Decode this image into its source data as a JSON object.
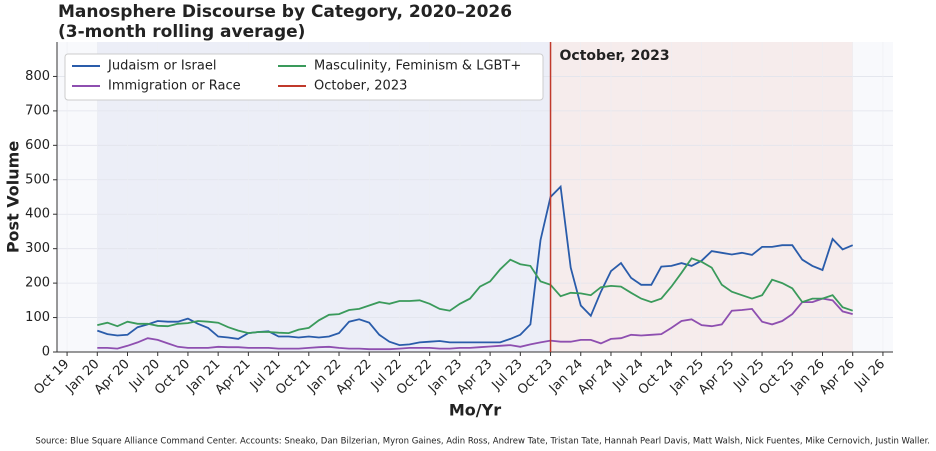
{
  "chart_data": {
    "type": "line",
    "title": "Manosphere Discourse by Category, 2020–2026",
    "subtitle": "(3-month rolling average)",
    "x_label": "Mo/Yr",
    "y_label": "Post Volume",
    "source": "Source: Blue Square Alliance Command Center. Accounts: Sneako, Dan Bilzerian, Myron Gaines, Adin Ross, Andrew Tate, Tristan Tate, Hannah Pearl Davis, Matt Walsh, Nick Fuentes, Mike Cernovich, Justin Waller.",
    "x": [
      "2020-01",
      "2020-02",
      "2020-03",
      "2020-04",
      "2020-05",
      "2020-06",
      "2020-07",
      "2020-08",
      "2020-09",
      "2020-10",
      "2020-11",
      "2020-12",
      "2021-01",
      "2021-02",
      "2021-03",
      "2021-04",
      "2021-05",
      "2021-06",
      "2021-07",
      "2021-08",
      "2021-09",
      "2021-10",
      "2021-11",
      "2021-12",
      "2022-01",
      "2022-02",
      "2022-03",
      "2022-04",
      "2022-05",
      "2022-06",
      "2022-07",
      "2022-08",
      "2022-09",
      "2022-10",
      "2022-11",
      "2022-12",
      "2023-01",
      "2023-02",
      "2023-03",
      "2023-04",
      "2023-05",
      "2023-06",
      "2023-07",
      "2023-08",
      "2023-09",
      "2023-10",
      "2023-11",
      "2023-12",
      "2024-01",
      "2024-02",
      "2024-03",
      "2024-04",
      "2024-05",
      "2024-06",
      "2024-07",
      "2024-08",
      "2024-09",
      "2024-10",
      "2024-11",
      "2024-12",
      "2025-01",
      "2025-02",
      "2025-03",
      "2025-04",
      "2025-05",
      "2025-06",
      "2025-07",
      "2025-08",
      "2025-09",
      "2025-10",
      "2025-11",
      "2025-12",
      "2026-01",
      "2026-02",
      "2026-03",
      "2026-04"
    ],
    "series": [
      {
        "name": "Judaism or Israel",
        "color": "#2a5caa",
        "values": [
          62,
          52,
          48,
          50,
          72,
          80,
          90,
          88,
          88,
          97,
          82,
          70,
          45,
          42,
          38,
          55,
          58,
          60,
          45,
          45,
          42,
          45,
          42,
          45,
          55,
          88,
          95,
          85,
          50,
          30,
          20,
          22,
          28,
          30,
          32,
          28,
          28,
          28,
          28,
          28,
          28,
          38,
          50,
          80,
          325,
          450,
          480,
          245,
          135,
          105,
          175,
          235,
          258,
          215,
          195,
          195,
          248,
          250,
          258,
          250,
          265,
          293,
          288,
          283,
          288,
          282,
          305,
          305,
          310,
          310,
          268,
          250,
          238,
          328,
          298,
          310
        ]
      },
      {
        "name": "Immigration or Race",
        "color": "#8e4fb0",
        "values": [
          12,
          12,
          10,
          18,
          28,
          40,
          35,
          25,
          15,
          12,
          12,
          12,
          15,
          14,
          14,
          12,
          12,
          12,
          10,
          10,
          10,
          12,
          14,
          15,
          12,
          10,
          10,
          8,
          8,
          8,
          10,
          12,
          12,
          12,
          10,
          10,
          12,
          12,
          14,
          16,
          18,
          20,
          15,
          22,
          28,
          33,
          30,
          30,
          35,
          35,
          25,
          38,
          40,
          50,
          48,
          50,
          52,
          70,
          90,
          95,
          78,
          75,
          80,
          120,
          122,
          125,
          88,
          80,
          90,
          110,
          145,
          145,
          155,
          150,
          118,
          110
        ]
      },
      {
        "name": "Masculinity, Feminism & LGBT+",
        "color": "#3a9a5b",
        "values": [
          78,
          85,
          75,
          88,
          82,
          82,
          76,
          75,
          82,
          84,
          90,
          88,
          85,
          72,
          62,
          55,
          58,
          58,
          56,
          55,
          65,
          70,
          92,
          108,
          110,
          122,
          125,
          135,
          145,
          140,
          148,
          148,
          150,
          140,
          125,
          120,
          140,
          155,
          190,
          205,
          240,
          268,
          255,
          250,
          205,
          195,
          162,
          172,
          170,
          165,
          188,
          192,
          190,
          172,
          155,
          145,
          155,
          190,
          230,
          272,
          262,
          245,
          195,
          175,
          165,
          155,
          165,
          210,
          200,
          185,
          145,
          155,
          155,
          165,
          130,
          120
        ]
      }
    ],
    "events": [
      {
        "x": "2023-10",
        "label": "October, 2023",
        "color": "#c0392b"
      }
    ],
    "xlim": [
      "2019-09",
      "2026-08"
    ],
    "xticks": [
      {
        "value": "2019-10",
        "label": "Oct 19"
      },
      {
        "value": "2020-01",
        "label": "Jan 20"
      },
      {
        "value": "2020-04",
        "label": "Apr 20"
      },
      {
        "value": "2020-07",
        "label": "Jul 20"
      },
      {
        "value": "2020-10",
        "label": "Oct 20"
      },
      {
        "value": "2021-01",
        "label": "Jan 21"
      },
      {
        "value": "2021-04",
        "label": "Apr 21"
      },
      {
        "value": "2021-07",
        "label": "Jul 21"
      },
      {
        "value": "2021-10",
        "label": "Oct 21"
      },
      {
        "value": "2022-01",
        "label": "Jan 22"
      },
      {
        "value": "2022-04",
        "label": "Apr 22"
      },
      {
        "value": "2022-07",
        "label": "Jul 22"
      },
      {
        "value": "2022-10",
        "label": "Oct 22"
      },
      {
        "value": "2023-01",
        "label": "Jan 23"
      },
      {
        "value": "2023-04",
        "label": "Apr 23"
      },
      {
        "value": "2023-07",
        "label": "Jul 23"
      },
      {
        "value": "2023-10",
        "label": "Oct 23"
      },
      {
        "value": "2024-01",
        "label": "Jan 24"
      },
      {
        "value": "2024-04",
        "label": "Apr 24"
      },
      {
        "value": "2024-07",
        "label": "Jul 24"
      },
      {
        "value": "2024-10",
        "label": "Oct 24"
      },
      {
        "value": "2025-01",
        "label": "Jan 25"
      },
      {
        "value": "2025-04",
        "label": "Apr 25"
      },
      {
        "value": "2025-07",
        "label": "Jul 25"
      },
      {
        "value": "2025-10",
        "label": "Oct 25"
      },
      {
        "value": "2026-01",
        "label": "Jan 26"
      },
      {
        "value": "2026-04",
        "label": "Apr 26"
      },
      {
        "value": "2026-07",
        "label": "Jul 26"
      }
    ],
    "ylim": [
      0,
      900
    ],
    "yticks": [
      0,
      100,
      200,
      300,
      400,
      500,
      600,
      700,
      800
    ],
    "grid": true
  }
}
